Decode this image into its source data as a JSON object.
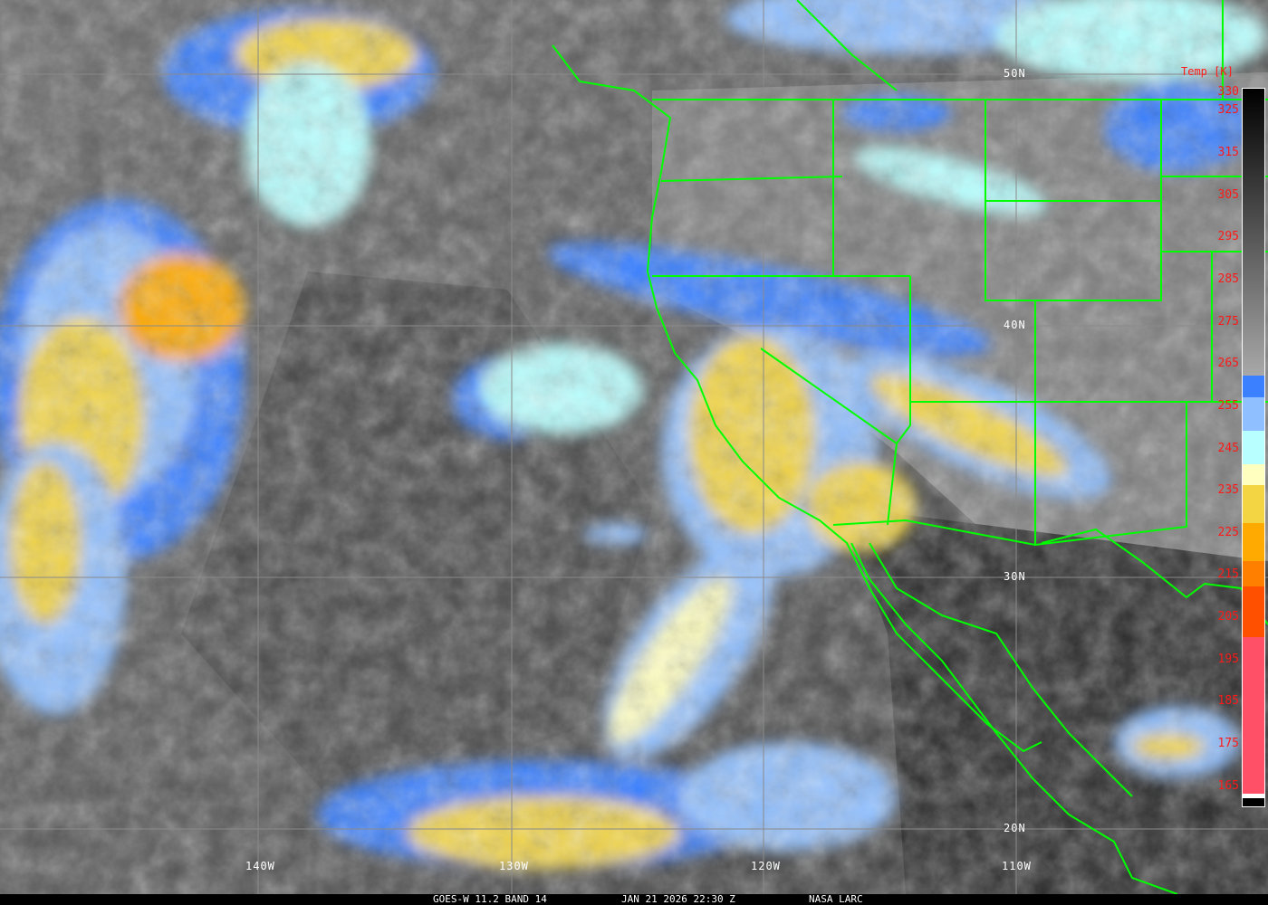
{
  "footer": {
    "satellite": "GOES-W 11.2 BAND 14",
    "datetime": "JAN 21 2026 22:30 Z",
    "credit": "NASA LARC"
  },
  "colorbar": {
    "title": "Temp [K]",
    "ticks": [
      "330",
      "325",
      "315",
      "305",
      "295",
      "285",
      "275",
      "265",
      "255",
      "245",
      "235",
      "225",
      "215",
      "205",
      "195",
      "185",
      "175",
      "165"
    ],
    "tick_values": [
      330,
      325,
      315,
      305,
      295,
      285,
      275,
      265,
      255,
      245,
      235,
      225,
      215,
      205,
      195,
      185,
      175,
      165
    ],
    "range": [
      160,
      330
    ],
    "segments": [
      {
        "from": 262,
        "to": 330,
        "color": "gradient",
        "colors": [
          "#a8a8a8",
          "#000000"
        ]
      },
      {
        "from": 257,
        "to": 262,
        "color": "#3b80ff"
      },
      {
        "from": 249,
        "to": 257,
        "color": "#8fbfff"
      },
      {
        "from": 241,
        "to": 249,
        "color": "#b8ffff"
      },
      {
        "from": 236,
        "to": 241,
        "color": "#ffffc0"
      },
      {
        "from": 227,
        "to": 236,
        "color": "#f3d544"
      },
      {
        "from": 218,
        "to": 227,
        "color": "#ffaa00"
      },
      {
        "from": 212,
        "to": 218,
        "color": "#ff7f00"
      },
      {
        "from": 200,
        "to": 212,
        "color": "#ff5000"
      },
      {
        "from": 163,
        "to": 200,
        "color": "#ff5068"
      },
      {
        "from": 162,
        "to": 163,
        "color": "#ffffff"
      },
      {
        "from": 160,
        "to": 162,
        "color": "#000000"
      }
    ]
  },
  "grid": {
    "lon_labels": [
      "140W",
      "130W",
      "120W",
      "110W"
    ],
    "lat_labels": [
      "50N",
      "40N",
      "30N",
      "20N"
    ]
  },
  "colors": {
    "boundaries": "#00ff00",
    "grid": "#8a8a8a",
    "labels": "#ffffff",
    "colorbar_text": "#ff1a1a"
  }
}
